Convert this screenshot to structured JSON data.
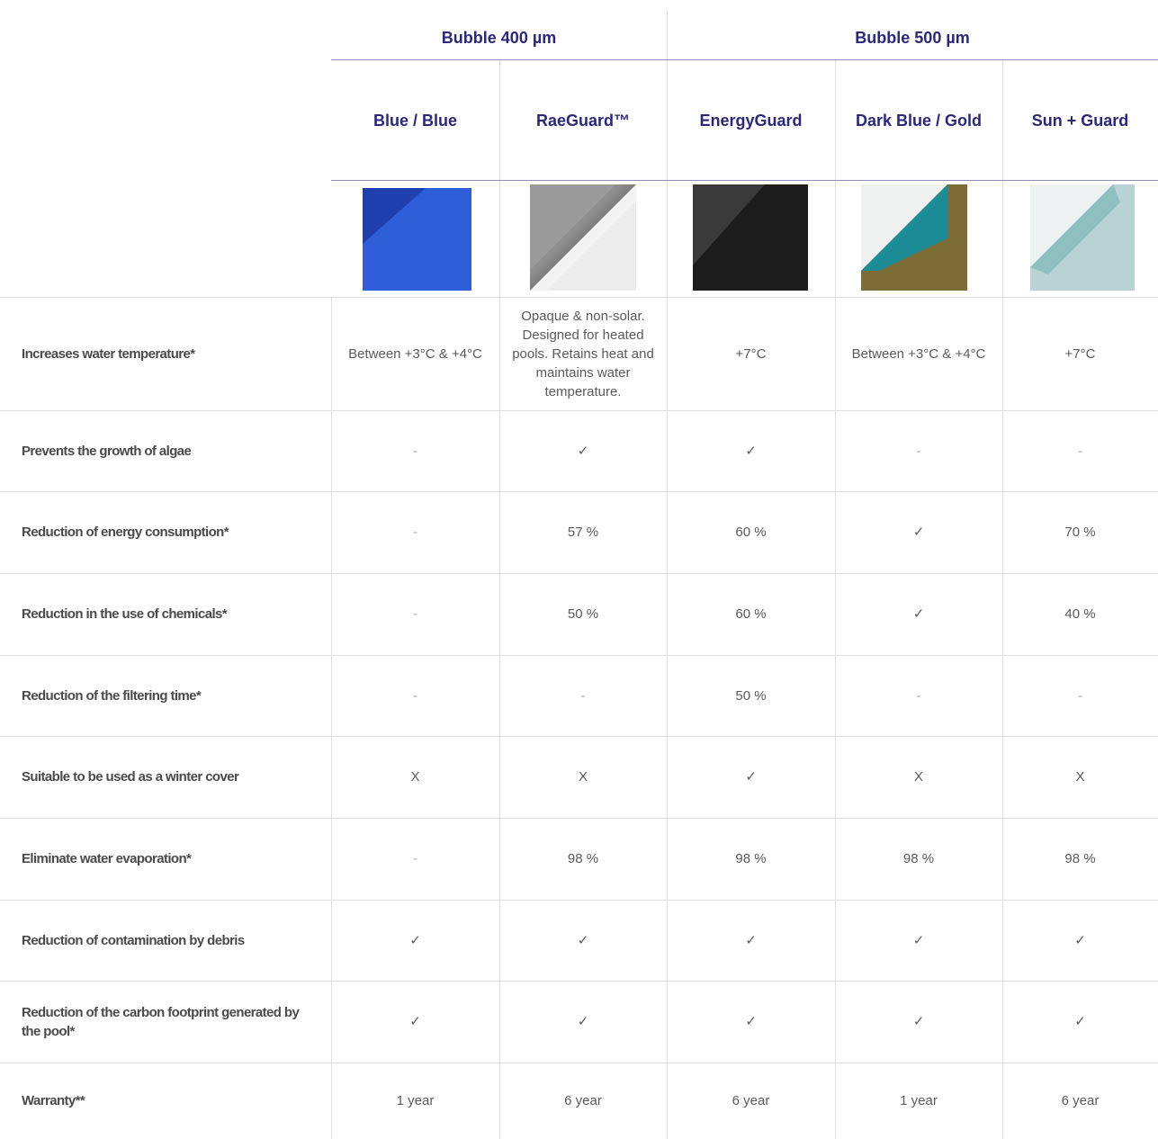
{
  "header": {
    "groups": [
      "Bubble 400 µm",
      "Bubble 500 µm"
    ],
    "products": [
      "Blue / Blue",
      "RaeGuard™",
      "EnergyGuard",
      "Dark Blue / Gold",
      "Sun + Guard"
    ]
  },
  "table": {
    "rows": [
      {
        "feature": "Increases water temperature*",
        "cells": [
          "Between +3°C & +4°C",
          "Opaque & non-solar. Designed for heated pools. Retains heat and maintains water temperature.",
          "+7°C",
          "Between +3°C & +4°C",
          "+7°C"
        ]
      },
      {
        "feature": "Prevents the growth of algae",
        "cells": [
          "-",
          "✓",
          "✓",
          "-",
          "-"
        ]
      },
      {
        "feature": "Reduction of energy consumption*",
        "cells": [
          "-",
          "57 %",
          "60 %",
          "✓",
          "70 %"
        ]
      },
      {
        "feature": "Reduction in the use of chemicals*",
        "cells": [
          "-",
          "50 %",
          "60 %",
          "✓",
          "40 %"
        ]
      },
      {
        "feature": "Reduction of the filtering time*",
        "cells": [
          "-",
          "-",
          "50 %",
          "-",
          "-"
        ]
      },
      {
        "feature": "Suitable to be used as a winter cover",
        "cells": [
          "X",
          "X",
          "✓",
          "X",
          "X"
        ]
      },
      {
        "feature": "Eliminate water evaporation*",
        "cells": [
          "-",
          "98 %",
          "98 %",
          "98 %",
          "98 %"
        ]
      },
      {
        "feature": "Reduction of contamination by debris",
        "cells": [
          "✓",
          "✓",
          "✓",
          "✓",
          "✓"
        ]
      },
      {
        "feature": "Reduction of the carbon footprint generated by the pool*",
        "cells": [
          "✓",
          "✓",
          "✓",
          "✓",
          "✓"
        ]
      },
      {
        "feature": "Warranty**",
        "cells": [
          "1 year",
          "6 year",
          "6 year",
          "1 year",
          "6 year"
        ]
      }
    ]
  }
}
